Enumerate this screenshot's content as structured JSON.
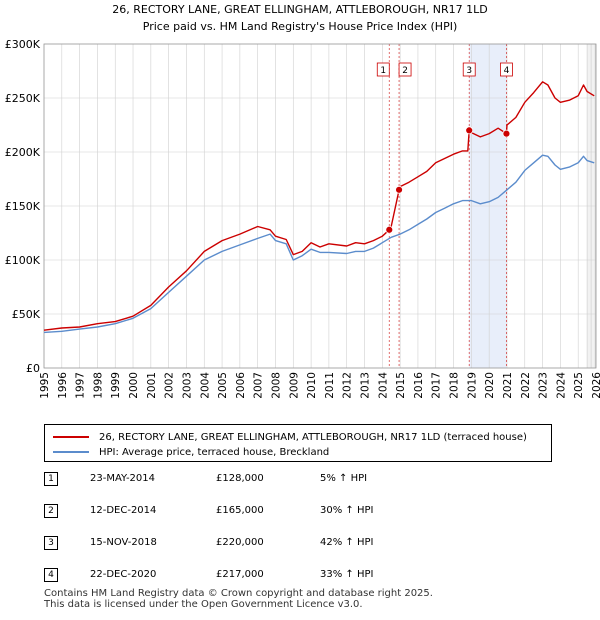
{
  "chart_data": {
    "type": "line",
    "title": "26, RECTORY LANE, GREAT ELLINGHAM, ATTLEBOROUGH, NR17 1LD",
    "subtitle": "Price paid vs. HM Land Registry's House Price Index (HPI)",
    "xlim": [
      1995,
      2026
    ],
    "ylim": [
      0,
      300000
    ],
    "x_ticks": [
      "1995",
      "1996",
      "1997",
      "1998",
      "1999",
      "2000",
      "2001",
      "2002",
      "2003",
      "2004",
      "2005",
      "2006",
      "2007",
      "2008",
      "2009",
      "2010",
      "2011",
      "2012",
      "2013",
      "2014",
      "2015",
      "2016",
      "2017",
      "2018",
      "2019",
      "2020",
      "2021",
      "2022",
      "2023",
      "2024",
      "2025",
      "2026"
    ],
    "y_ticks": [
      {
        "value": 0,
        "label": "£0"
      },
      {
        "value": 50000,
        "label": "£50K"
      },
      {
        "value": 100000,
        "label": "£100K"
      },
      {
        "value": 150000,
        "label": "£150K"
      },
      {
        "value": 200000,
        "label": "£200K"
      },
      {
        "value": 250000,
        "label": "£250K"
      },
      {
        "value": 300000,
        "label": "£300K"
      }
    ],
    "grid": true,
    "shaded_periods": [
      [
        2018.88,
        2020.97
      ]
    ],
    "forecast_start": 2025.5,
    "series": [
      {
        "name": "26, RECTORY LANE, GREAT ELLINGHAM, ATTLEBOROUGH, NR17 1LD (terraced house)",
        "color": "#cc0000",
        "x": [
          1995,
          1996,
          1997,
          1998,
          1999,
          2000,
          2001,
          2002,
          2003,
          2004,
          2005,
          2006,
          2007,
          2007.7,
          2008,
          2008.6,
          2009,
          2009.5,
          2010,
          2010.5,
          2011,
          2012,
          2012.5,
          2013,
          2013.5,
          2014,
          2014.39,
          2014.5,
          2014.94,
          2015,
          2015.5,
          2016,
          2016.5,
          2017,
          2017.5,
          2018,
          2018.5,
          2018.8,
          2018.88,
          2019,
          2019.5,
          2020,
          2020.5,
          2020.97,
          2021,
          2021.5,
          2022,
          2022.5,
          2023,
          2023.3,
          2023.7,
          2024,
          2024.5,
          2025,
          2025.3,
          2025.5,
          2025.9
        ],
        "values": [
          35000,
          37000,
          38000,
          41000,
          43000,
          48000,
          58000,
          75000,
          90000,
          108000,
          118000,
          124000,
          131000,
          128000,
          122000,
          119000,
          105000,
          108000,
          116000,
          112000,
          115000,
          113000,
          116000,
          115000,
          118000,
          122000,
          128000,
          131000,
          165000,
          168000,
          172000,
          177000,
          182000,
          190000,
          194000,
          198000,
          201000,
          201000,
          220000,
          218000,
          214000,
          217000,
          222000,
          217000,
          225000,
          232000,
          246000,
          255000,
          265000,
          262000,
          250000,
          246000,
          248000,
          252000,
          262000,
          256000,
          252000
        ]
      },
      {
        "name": "HPI: Average price, terraced house, Breckland",
        "color": "#5b8ccc",
        "x": [
          1995,
          1996,
          1997,
          1998,
          1999,
          2000,
          2001,
          2002,
          2003,
          2004,
          2005,
          2006,
          2007,
          2007.7,
          2008,
          2008.6,
          2009,
          2009.5,
          2010,
          2010.5,
          2011,
          2012,
          2012.5,
          2013,
          2013.5,
          2014,
          2014.5,
          2015,
          2015.5,
          2016,
          2016.5,
          2017,
          2017.5,
          2018,
          2018.5,
          2019,
          2019.5,
          2020,
          2020.5,
          2021,
          2021.5,
          2022,
          2022.5,
          2023,
          2023.3,
          2023.7,
          2024,
          2024.5,
          2025,
          2025.3,
          2025.5,
          2025.9
        ],
        "values": [
          33000,
          34000,
          36000,
          38000,
          41000,
          46000,
          55000,
          70000,
          85000,
          100000,
          108000,
          114000,
          120000,
          124000,
          118000,
          115000,
          100000,
          104000,
          110000,
          107000,
          107000,
          106000,
          108000,
          108000,
          111000,
          116000,
          121000,
          124000,
          128000,
          133000,
          138000,
          144000,
          148000,
          152000,
          155000,
          155000,
          152000,
          154000,
          158000,
          165000,
          172000,
          183000,
          190000,
          197000,
          196000,
          188000,
          184000,
          186000,
          190000,
          196000,
          192000,
          190000
        ]
      }
    ],
    "markers": [
      {
        "label": "1",
        "x": 2014.39,
        "y": 128000
      },
      {
        "label": "2",
        "x": 2014.94,
        "y": 165000
      },
      {
        "label": "3",
        "x": 2018.88,
        "y": 220000
      },
      {
        "label": "4",
        "x": 2020.97,
        "y": 217000
      }
    ]
  },
  "legend": {
    "property": "26, RECTORY LANE, GREAT ELLINGHAM, ATTLEBOROUGH, NR17 1LD (terraced house)",
    "hpi": "HPI: Average price, terraced house, Breckland"
  },
  "sales": [
    {
      "num": "1",
      "date": "23-MAY-2014",
      "price": "£128,000",
      "pct": "5% ↑ HPI"
    },
    {
      "num": "2",
      "date": "12-DEC-2014",
      "price": "£165,000",
      "pct": "30% ↑ HPI"
    },
    {
      "num": "3",
      "date": "15-NOV-2018",
      "price": "£220,000",
      "pct": "42% ↑ HPI"
    },
    {
      "num": "4",
      "date": "22-DEC-2020",
      "price": "£217,000",
      "pct": "33% ↑ HPI"
    }
  ],
  "footer": {
    "line1": "Contains HM Land Registry data © Crown copyright and database right 2025.",
    "line2": "This data is licensed under the Open Government Licence v3.0."
  },
  "colors": {
    "property": "#cc0000",
    "hpi": "#5b8ccc",
    "shade": "#e8eefa",
    "grid": "#d0d0d0"
  }
}
